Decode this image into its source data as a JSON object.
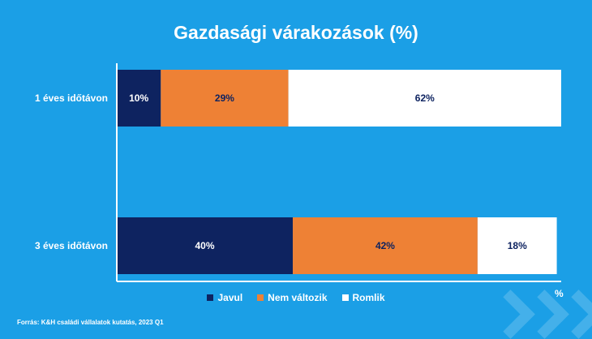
{
  "title": "Gazdasági várakozások (%)",
  "source": "Forrás: K&H családi vállalatok kutatás, 2023 Q1",
  "unit_label": "%",
  "colors": {
    "background": "#1b9fe6",
    "javul": "#0e2360",
    "nem_valtozik": "#ee8135",
    "romlik": "#ffffff",
    "dark_text": "#0e2360",
    "light_text": "#ffffff"
  },
  "chart_data": {
    "type": "bar",
    "orientation": "horizontal",
    "stacked": true,
    "title": "Gazdasági várakozások (%)",
    "categories": [
      "1 éves időtávon",
      "3 éves időtávon"
    ],
    "series": [
      {
        "name": "Javul",
        "values": [
          10,
          40
        ],
        "labels": [
          "10%",
          "40%"
        ]
      },
      {
        "name": "Nem változik",
        "values": [
          29,
          42
        ],
        "labels": [
          "29%",
          "42%"
        ]
      },
      {
        "name": "Romlik",
        "values": [
          62,
          18
        ],
        "labels": [
          "62%",
          "18%"
        ]
      }
    ],
    "xlabel": "%",
    "ylabel": "",
    "xlim": [
      0,
      101
    ],
    "grid": false,
    "legend_position": "bottom"
  }
}
